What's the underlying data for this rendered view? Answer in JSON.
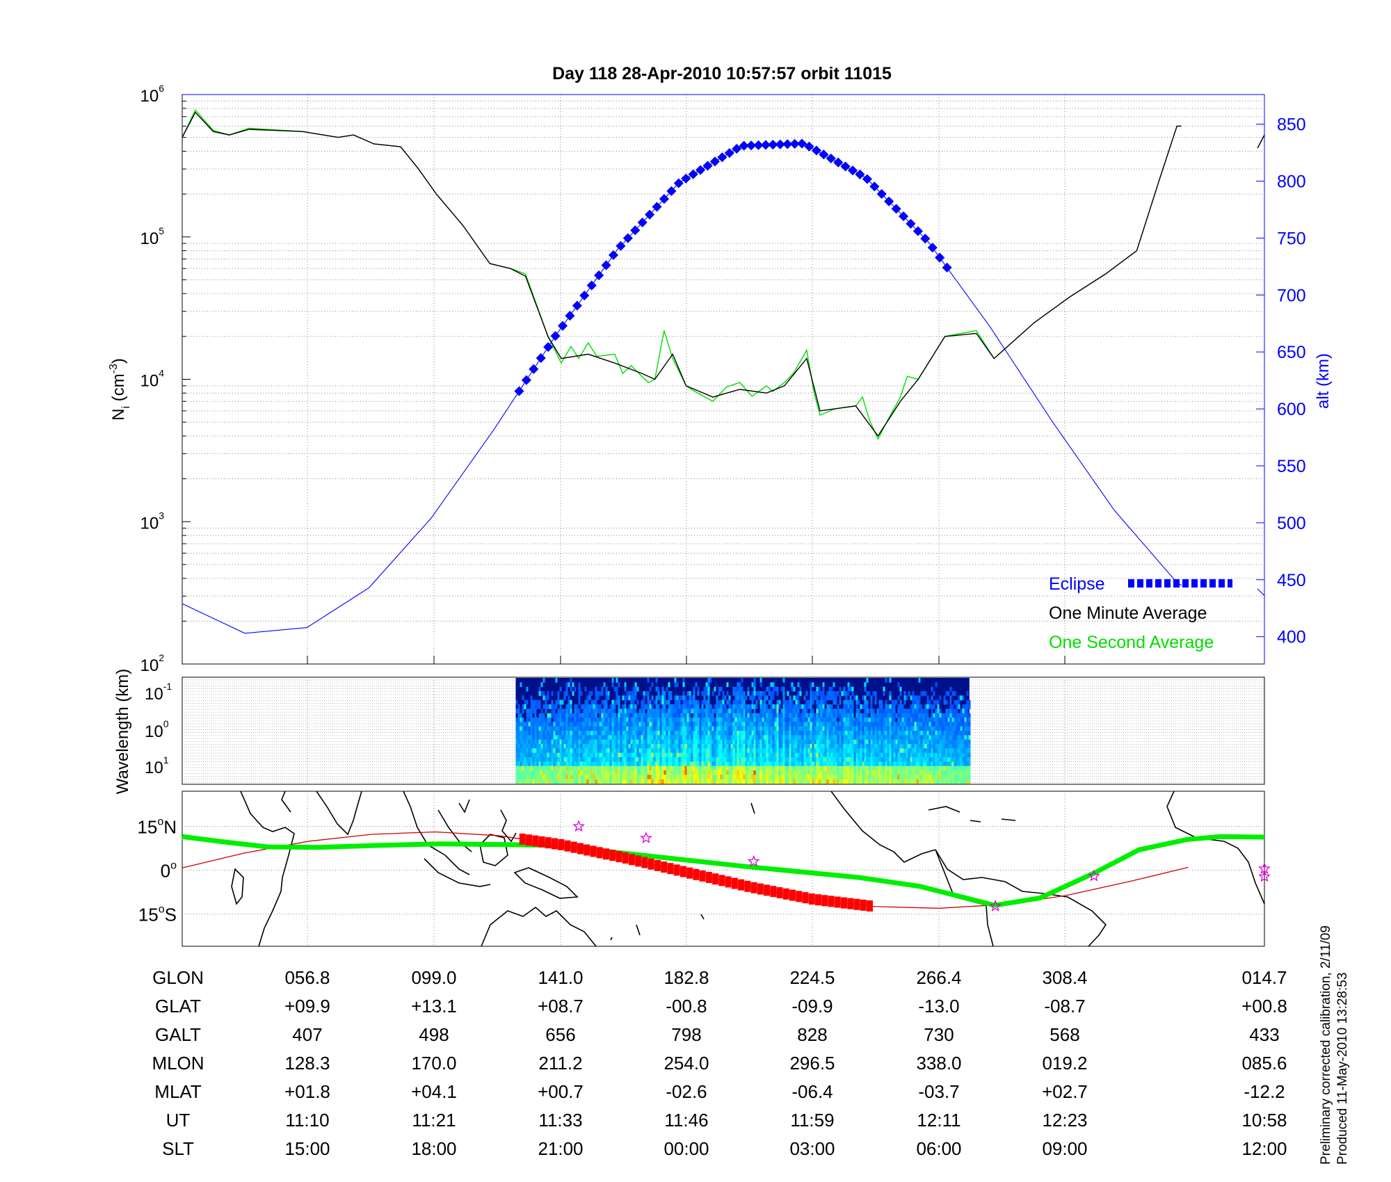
{
  "title": "Day 118  28-Apr-2010 10:57:57   orbit 11015",
  "side_notes": [
    "Preliminary corrected calibration, 2/11/09",
    "Produced 11-May-2010 13:28:53"
  ],
  "colors": {
    "density_minute": "#000000",
    "density_second": "#00dd00",
    "altitude": "#0000ff",
    "eclipse": "#0000ff",
    "orbit_track": "#cc0000",
    "orbit_eclipse": "#ff0000",
    "green_track": "#00ee00",
    "stars": "#dd00dd"
  },
  "chart_data": [
    {
      "type": "line",
      "panel": "density",
      "ylabel": {
        "main": "N",
        "sub": "i",
        "unit_open": " (cm",
        "unit_exp": "-3",
        "unit_close": ")"
      },
      "y_scale": "log",
      "ylim": [
        100,
        1000000
      ],
      "yticks": [
        {
          "base": "10",
          "exp": "2"
        },
        {
          "base": "10",
          "exp": "3"
        },
        {
          "base": "10",
          "exp": "4"
        },
        {
          "base": "10",
          "exp": "5"
        },
        {
          "base": "10",
          "exp": "6"
        }
      ],
      "y2label": "alt (km)",
      "y2lim": [
        376,
        876
      ],
      "y2ticks": [
        "400",
        "450",
        "500",
        "550",
        "600",
        "650",
        "700",
        "750",
        "800",
        "850"
      ],
      "xlim": [
        "10:57:57",
        "12:42:30"
      ],
      "grid": true,
      "legend_placement": "bottom-right",
      "legend": [
        {
          "label": "Eclipse",
          "color": "#0000ff"
        },
        {
          "label": "One Minute Average",
          "color": "#000000"
        },
        {
          "label": "One Second Average",
          "color": "#00dd00"
        }
      ],
      "series": [
        {
          "name": "One Second Average",
          "axis": "left",
          "segments": [
            [
              [
                "10:57:57",
                500000
              ],
              [
                "10:59:13",
                780000
              ],
              [
                "11:00:57",
                560000
              ],
              [
                "11:02:30",
                520000
              ],
              [
                "11:04:24",
                580000
              ],
              [
                "11:09:34",
                550000
              ],
              [
                "11:13:01",
                500000
              ],
              [
                "11:14:30",
                520000
              ],
              [
                "11:16:28",
                450000
              ],
              [
                "11:19:03",
                430000
              ],
              [
                "11:20:47",
                300000
              ],
              [
                "11:22:30",
                200000
              ],
              [
                "11:25:05",
                120000
              ],
              [
                "11:27:40",
                65000
              ],
              [
                "11:29:40",
                60000
              ],
              [
                "11:31:07",
                55000
              ],
              [
                "11:33:17",
                20000
              ],
              [
                "11:34:34",
                13000
              ],
              [
                "11:35:30",
                17000
              ],
              [
                "11:36:15",
                14000
              ],
              [
                "11:37:10",
                18000
              ],
              [
                "11:38:00",
                14500
              ],
              [
                "11:39:44",
                15000
              ],
              [
                "11:40:30",
                11000
              ],
              [
                "11:41:20",
                12500
              ],
              [
                "11:42:20",
                10500
              ],
              [
                "11:43:00",
                9500
              ],
              [
                "11:43:37",
                10000
              ],
              [
                "11:44:30",
                22000
              ],
              [
                "11:45:20",
                14000
              ],
              [
                "11:46:38",
                9000
              ],
              [
                "11:47:30",
                8200
              ],
              [
                "11:49:13",
                7000
              ],
              [
                "11:50:30",
                8800
              ],
              [
                "11:51:49",
                9500
              ],
              [
                "11:53:00",
                7600
              ],
              [
                "11:54:24",
                9000
              ],
              [
                "11:55:00",
                8200
              ],
              [
                "11:56:07",
                9500
              ],
              [
                "11:57:00",
                11000
              ],
              [
                "11:58:17",
                16000
              ],
              [
                "11:59:00",
                8000
              ],
              [
                "11:59:34",
                5600
              ],
              [
                "12:01:00",
                6200
              ],
              [
                "12:03:01",
                6500
              ],
              [
                "12:03:40",
                7500
              ],
              [
                "12:04:20",
                5200
              ],
              [
                "12:05:10",
                3800
              ],
              [
                "12:06:00",
                5000
              ],
              [
                "12:07:20",
                7500
              ],
              [
                "12:08:00",
                10500
              ],
              [
                "12:09:03",
                10000
              ],
              [
                "12:11:38",
                20000
              ],
              [
                "12:14:40",
                22000
              ],
              [
                "12:16:23",
                14000
              ],
              [
                "12:20:16",
                25000
              ],
              [
                "12:23:43",
                38000
              ],
              [
                "12:27:10",
                55000
              ],
              [
                "12:30:10",
                80000
              ],
              [
                "12:32:20",
                250000
              ],
              [
                "12:34:03",
                600000
              ],
              [
                "12:34:29",
                600000
              ]
            ],
            [
              [
                "12:41:50",
                420000
              ],
              [
                "12:42:30",
                520000
              ]
            ]
          ]
        },
        {
          "name": "One Minute Average",
          "axis": "left",
          "segments": [
            [
              [
                "10:57:57",
                500000
              ],
              [
                "10:59:13",
                750000
              ],
              [
                "11:00:57",
                550000
              ],
              [
                "11:02:30",
                520000
              ],
              [
                "11:04:24",
                570000
              ],
              [
                "11:09:34",
                550000
              ],
              [
                "11:13:01",
                500000
              ],
              [
                "11:14:30",
                520000
              ],
              [
                "11:16:28",
                450000
              ],
              [
                "11:19:03",
                430000
              ],
              [
                "11:20:47",
                300000
              ],
              [
                "11:22:30",
                200000
              ],
              [
                "11:25:05",
                120000
              ],
              [
                "11:27:40",
                65000
              ],
              [
                "11:29:40",
                60000
              ],
              [
                "11:31:07",
                53000
              ],
              [
                "11:33:17",
                20000
              ],
              [
                "11:34:34",
                14000
              ],
              [
                "11:37:10",
                15000
              ],
              [
                "11:39:44",
                13000
              ],
              [
                "11:42:20",
                11000
              ],
              [
                "11:43:37",
                10000
              ],
              [
                "11:45:20",
                15000
              ],
              [
                "11:46:38",
                9000
              ],
              [
                "11:49:13",
                7500
              ],
              [
                "11:51:49",
                8500
              ],
              [
                "11:54:24",
                8000
              ],
              [
                "11:56:07",
                9000
              ],
              [
                "11:58:17",
                14000
              ],
              [
                "11:59:34",
                6000
              ],
              [
                "12:03:01",
                6500
              ],
              [
                "12:05:10",
                4000
              ],
              [
                "12:07:20",
                7000
              ],
              [
                "12:09:03",
                10000
              ],
              [
                "12:11:38",
                20000
              ],
              [
                "12:14:40",
                21000
              ],
              [
                "12:16:23",
                14000
              ],
              [
                "12:20:16",
                25000
              ],
              [
                "12:23:43",
                38000
              ],
              [
                "12:27:10",
                55000
              ],
              [
                "12:30:10",
                80000
              ],
              [
                "12:32:20",
                250000
              ],
              [
                "12:34:03",
                600000
              ],
              [
                "12:34:29",
                600000
              ]
            ],
            [
              [
                "12:41:50",
                420000
              ],
              [
                "12:42:30",
                520000
              ]
            ]
          ]
        },
        {
          "name": "alt (km)",
          "axis": "right",
          "segments": [
            [
              [
                "10:57:57",
                429
              ],
              [
                "11:04:00",
                403
              ],
              [
                "11:10:00",
                408
              ],
              [
                "11:16:00",
                443
              ],
              [
                "11:22:00",
                504
              ],
              [
                "11:28:00",
                581
              ],
              [
                "11:34:00",
                664
              ],
              [
                "11:40:00",
                740
              ],
              [
                "11:46:00",
                799
              ],
              [
                "11:52:00",
                831
              ],
              [
                "11:58:00",
                833
              ],
              [
                "12:04:00",
                803
              ],
              [
                "12:10:00",
                747
              ],
              [
                "12:16:00",
                672
              ],
              [
                "12:22:00",
                589
              ],
              [
                "12:28:00",
                511
              ],
              [
                "12:34:00",
                448
              ],
              [
                "12:34:30",
                445
              ]
            ],
            [
              [
                "12:41:50",
                442
              ],
              [
                "12:42:30",
                436
              ]
            ]
          ]
        }
      ],
      "eclipse": {
        "start": "11:30:30",
        "end": "12:11:50"
      }
    },
    {
      "type": "heatmap",
      "panel": "spectrogram",
      "ylabel": "Wavelength (km)",
      "y_scale": "log",
      "yticks": [
        {
          "base": "10",
          "exp": "-1"
        },
        {
          "base": "10",
          "exp": "0"
        },
        {
          "base": "10",
          "exp": "1"
        }
      ],
      "data_range": {
        "start": "11:30:10",
        "end": "12:14:00"
      },
      "colormap": "jet"
    },
    {
      "type": "map",
      "panel": "ground-track",
      "lon_range": [
        14.7,
        374.7
      ],
      "lat_range": [
        -26,
        27
      ],
      "lat_ticks": [
        {
          "value": 15,
          "label": "15",
          "hemi": "N"
        },
        {
          "value": 0,
          "label": "0",
          "hemi": ""
        },
        {
          "value": -15,
          "label": "15",
          "hemi": "S"
        }
      ],
      "orbit_track": [
        [
          14.7,
          0.8
        ],
        [
          35,
          5.8
        ],
        [
          56.8,
          9.9
        ],
        [
          78,
          12.3
        ],
        [
          99.0,
          13.1
        ],
        [
          120,
          11.8
        ],
        [
          141.0,
          8.7
        ],
        [
          162,
          4.2
        ],
        [
          182.8,
          -0.8
        ],
        [
          204,
          -5.8
        ],
        [
          224.5,
          -9.9
        ],
        [
          245,
          -12.4
        ],
        [
          266.4,
          -13.0
        ],
        [
          288,
          -11.7
        ],
        [
          308.4,
          -8.7
        ],
        [
          330,
          -3.8
        ],
        [
          349.4,
          1.0
        ]
      ],
      "orbit_eclipse": {
        "from_lon": 127.9,
        "to_lon": 243.4
      },
      "green_track": [
        [
          14.7,
          11.5
        ],
        [
          30,
          9.5
        ],
        [
          43,
          8
        ],
        [
          60,
          7.8
        ],
        [
          80,
          8.5
        ],
        [
          100,
          9
        ],
        [
          120,
          8.8
        ],
        [
          140,
          8.5
        ],
        [
          160,
          6
        ],
        [
          200,
          1.5
        ],
        [
          240,
          -2.5
        ],
        [
          260,
          -5.5
        ],
        [
          285,
          -12
        ],
        [
          300,
          -9.5
        ],
        [
          318,
          -1
        ],
        [
          333,
          7
        ],
        [
          349,
          10.5
        ],
        [
          360,
          11.5
        ],
        [
          374.7,
          11.3
        ]
      ],
      "stars": [
        [
          146.6,
          15
        ],
        [
          169,
          11
        ],
        [
          204.8,
          3
        ],
        [
          285.2,
          -12.3
        ],
        [
          318,
          -2
        ],
        [
          374.7,
          -2.2
        ],
        [
          374.7,
          0.5
        ]
      ]
    }
  ],
  "table": {
    "rows": [
      {
        "label": "GLON",
        "values": [
          "056.8",
          "099.0",
          "141.0",
          "182.8",
          "224.5",
          "266.4",
          "308.4",
          "014.7"
        ]
      },
      {
        "label": "GLAT",
        "values": [
          "+09.9",
          "+13.1",
          "+08.7",
          "-00.8",
          "-09.9",
          "-13.0",
          "-08.7",
          "+00.8"
        ]
      },
      {
        "label": "GALT",
        "values": [
          "407",
          "498",
          "656",
          "798",
          "828",
          "730",
          "568",
          "433"
        ]
      },
      {
        "label": "MLON",
        "values": [
          "128.3",
          "170.0",
          "211.2",
          "254.0",
          "296.5",
          "338.0",
          "019.2",
          "085.6"
        ]
      },
      {
        "label": "MLAT",
        "values": [
          "+01.8",
          "+04.1",
          "+00.7",
          "-02.6",
          "-06.4",
          "-03.7",
          "+02.7",
          "-12.2"
        ]
      },
      {
        "label": "UT",
        "values": [
          "11:10",
          "11:21",
          "11:33",
          "11:46",
          "11:59",
          "12:11",
          "12:23",
          "10:58"
        ]
      },
      {
        "label": "SLT",
        "values": [
          "15:00",
          "18:00",
          "21:00",
          "00:00",
          "03:00",
          "06:00",
          "09:00",
          "12:00"
        ]
      }
    ]
  }
}
